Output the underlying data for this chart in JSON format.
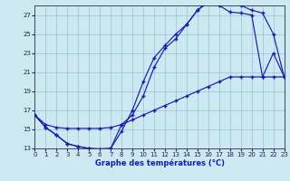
{
  "xlabel": "Graphe des températures (°C)",
  "bg_color": "#cce8f0",
  "grid_color": "#99ccd9",
  "line_color": "#1a1aaa",
  "xlim": [
    0,
    23
  ],
  "ylim": [
    13,
    28
  ],
  "yticks": [
    13,
    15,
    17,
    19,
    21,
    23,
    25,
    27
  ],
  "xticks": [
    0,
    1,
    2,
    3,
    4,
    5,
    6,
    7,
    8,
    9,
    10,
    11,
    12,
    13,
    14,
    15,
    16,
    17,
    18,
    19,
    20,
    21,
    22,
    23
  ],
  "line1_x": [
    0,
    1,
    2,
    3,
    4,
    5,
    6,
    7,
    8,
    9,
    10,
    11,
    12,
    13,
    14,
    15,
    16,
    17,
    18,
    19,
    20,
    21,
    22,
    23
  ],
  "line1_y": [
    16.5,
    15.2,
    14.4,
    13.5,
    13.2,
    13.0,
    12.95,
    13.0,
    14.8,
    17.0,
    20.0,
    22.5,
    23.8,
    25.0,
    26.0,
    27.5,
    28.5,
    28.5,
    28.3,
    28.0,
    27.5,
    27.2,
    25.0,
    20.5
  ],
  "line2_x": [
    0,
    1,
    2,
    3,
    4,
    5,
    6,
    7,
    8,
    9,
    10,
    11,
    12,
    13,
    14,
    15,
    16,
    17,
    18,
    19,
    20,
    21,
    22,
    23
  ],
  "line2_y": [
    16.5,
    15.2,
    14.4,
    13.5,
    13.2,
    13.0,
    12.95,
    13.0,
    15.5,
    16.5,
    18.5,
    21.5,
    23.5,
    24.5,
    26.0,
    27.5,
    28.3,
    28.0,
    27.3,
    27.2,
    27.0,
    20.5,
    23.0,
    20.5
  ],
  "line3_x": [
    0,
    1,
    2,
    3,
    4,
    5,
    6,
    7,
    8,
    9,
    10,
    11,
    12,
    13,
    14,
    15,
    16,
    17,
    18,
    19,
    20,
    21,
    22,
    23
  ],
  "line3_y": [
    16.5,
    15.5,
    15.2,
    15.1,
    15.1,
    15.1,
    15.1,
    15.2,
    15.5,
    16.0,
    16.5,
    17.0,
    17.5,
    18.0,
    18.5,
    19.0,
    19.5,
    20.0,
    20.5,
    20.5,
    20.5,
    20.5,
    20.5,
    20.5
  ]
}
